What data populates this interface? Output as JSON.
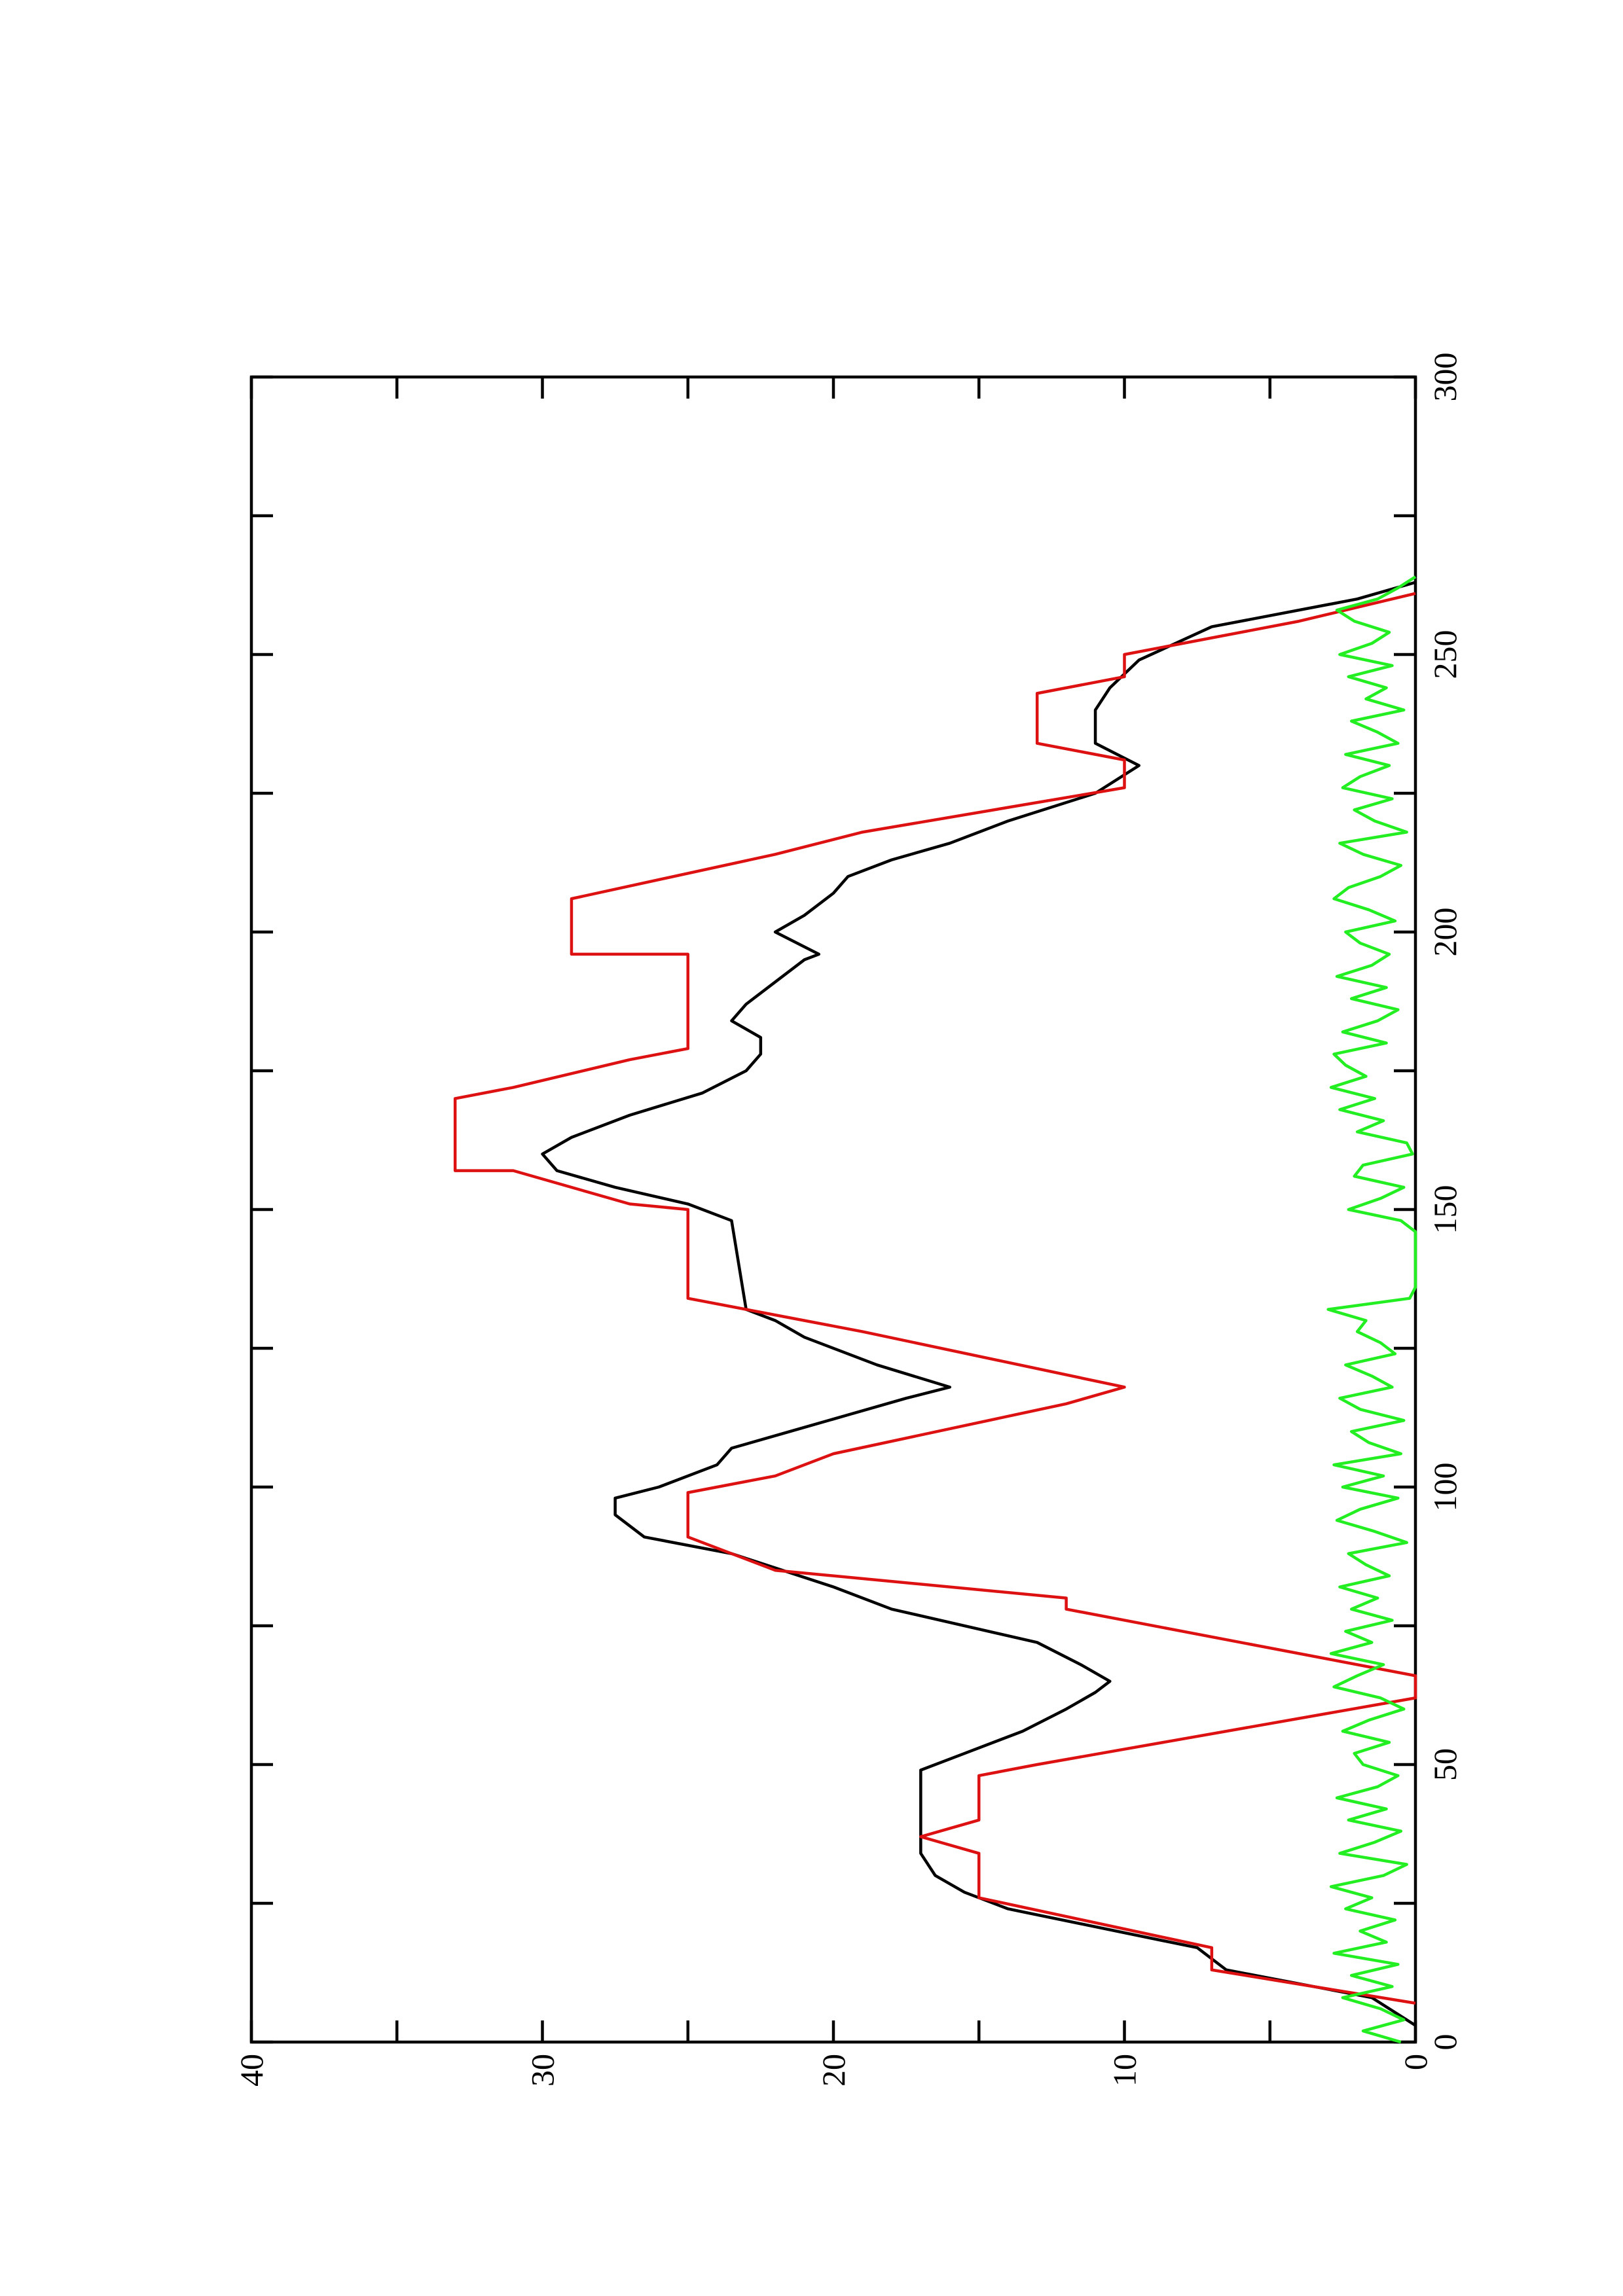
{
  "chart_data": {
    "type": "line",
    "xlim": [
      0,
      300
    ],
    "ylim": [
      0,
      40
    ],
    "xticks": [
      0,
      50,
      100,
      150,
      200,
      250,
      300
    ],
    "yticks": [
      0,
      10,
      20,
      30,
      40
    ],
    "xminor_ticks": [
      25,
      75,
      125,
      175,
      225,
      275
    ],
    "yminor_ticks": [
      5,
      15,
      25,
      35
    ],
    "series": [
      {
        "color": "#000000",
        "x": [
          3,
          8,
          13,
          17,
          24,
          27,
          30,
          34,
          37,
          40,
          45,
          49,
          52,
          56,
          60,
          63,
          65,
          68,
          72,
          78,
          82,
          88,
          91,
          95,
          98,
          100,
          104,
          107,
          110,
          113,
          116,
          118,
          122,
          127,
          130,
          132,
          148,
          151,
          154,
          157,
          160,
          163,
          167,
          171,
          175,
          178,
          181,
          184,
          187,
          191,
          195,
          196,
          200,
          203,
          207,
          210,
          213,
          216,
          220,
          225,
          230,
          234,
          240,
          244,
          249,
          255,
          260,
          263
        ],
        "values": [
          0,
          1.5,
          6.5,
          7.5,
          14,
          15.5,
          16.5,
          17,
          17,
          17,
          17,
          17,
          15.5,
          13.5,
          12,
          11,
          10.5,
          11.5,
          13,
          18,
          20,
          23.5,
          26.5,
          27.5,
          27.5,
          26,
          24,
          23.5,
          21.5,
          19.5,
          17.5,
          16,
          18.5,
          21,
          22,
          23,
          23.5,
          25,
          27.5,
          29.5,
          30,
          29,
          27,
          24.5,
          23,
          22.5,
          22.5,
          23.5,
          23,
          22,
          21,
          20.5,
          22,
          21,
          20,
          19.5,
          18,
          16,
          14,
          11,
          9.5,
          11,
          11,
          10.5,
          9.5,
          7,
          2,
          0
        ]
      },
      {
        "color": "#dd1111",
        "x": [
          7,
          13,
          17,
          26,
          34,
          37,
          40,
          48,
          50,
          62,
          66,
          78,
          80,
          85,
          91,
          94,
          99,
          102,
          106,
          115,
          118,
          128,
          134,
          150,
          151,
          157,
          157,
          170,
          172,
          177,
          179,
          196,
          196,
          206,
          214,
          218,
          226,
          231,
          234,
          243,
          246,
          250,
          256,
          261
        ],
        "values": [
          0,
          7,
          7,
          15,
          15,
          17,
          15,
          15,
          13,
          0,
          0,
          12,
          12,
          22,
          25,
          25,
          25,
          22,
          20,
          12,
          10,
          19,
          25,
          25,
          27,
          31,
          33,
          33,
          31,
          27,
          25,
          25,
          29,
          29,
          22,
          19,
          10,
          10,
          13,
          13,
          10,
          10,
          4,
          0
        ]
      },
      {
        "color": "#22ee22",
        "x": [
          0,
          2,
          4,
          6,
          8,
          10,
          12,
          14,
          16,
          18,
          20,
          22,
          24,
          26,
          28,
          30,
          32,
          34,
          36,
          38,
          40,
          42,
          44,
          46,
          48,
          50,
          52,
          54,
          56,
          58,
          60,
          62,
          64,
          66,
          68,
          70,
          72,
          74,
          76,
          78,
          80,
          82,
          84,
          86,
          88,
          90,
          92,
          94,
          96,
          98,
          100,
          102,
          104,
          106,
          108,
          110,
          112,
          114,
          116,
          118,
          120,
          122,
          124,
          126,
          128,
          130,
          132,
          134,
          136,
          138,
          140,
          142,
          144,
          146,
          148,
          150,
          152,
          154,
          156,
          158,
          160,
          162,
          164,
          166,
          168,
          170,
          172,
          174,
          176,
          178,
          180,
          182,
          184,
          186,
          188,
          190,
          192,
          194,
          196,
          198,
          200,
          202,
          204,
          206,
          208,
          210,
          212,
          214,
          216,
          218,
          220,
          222,
          224,
          226,
          228,
          230,
          232,
          234,
          236,
          238,
          240,
          242,
          244,
          246,
          248,
          250,
          252,
          254,
          256,
          258,
          260,
          262,
          264
        ],
        "values": [
          0.5,
          1.8,
          0.4,
          1.2,
          2.5,
          0.8,
          2.2,
          0.6,
          2.8,
          1.0,
          1.9,
          0.7,
          2.4,
          1.5,
          2.9,
          1.1,
          0.3,
          2.6,
          1.4,
          0.5,
          2.3,
          1.0,
          2.7,
          1.3,
          0.6,
          1.8,
          2.1,
          0.9,
          2.5,
          1.6,
          0.4,
          1.2,
          2.8,
          2.0,
          1.1,
          2.9,
          1.5,
          2.4,
          0.8,
          2.2,
          1.3,
          2.6,
          0.9,
          1.7,
          2.3,
          0.3,
          1.4,
          2.7,
          1.9,
          0.6,
          2.5,
          1.1,
          2.8,
          0.5,
          1.6,
          2.2,
          0.4,
          1.9,
          2.6,
          0.8,
          1.5,
          2.4,
          0.7,
          1.2,
          2.0,
          1.7,
          3.0,
          0.2,
          0,
          0,
          0,
          0,
          0,
          0,
          0.5,
          2.3,
          1.2,
          0.4,
          2.1,
          1.8,
          0.1,
          0.3,
          2.0,
          1.1,
          2.6,
          1.4,
          2.9,
          1.7,
          2.4,
          2.8,
          1.0,
          2.5,
          1.3,
          0.6,
          2.2,
          1.0,
          2.7,
          1.5,
          0.9,
          1.9,
          2.4,
          0.7,
          1.6,
          2.8,
          2.3,
          1.2,
          0.5,
          1.8,
          2.6,
          0.3,
          1.4,
          2.1,
          0.8,
          2.5,
          1.9,
          0.9,
          2.4,
          0.6,
          1.3,
          2.2,
          0.4,
          1.7,
          1.0,
          2.3,
          0.8,
          2.6,
          1.5,
          0.9,
          2.1,
          2.7,
          1.3,
          0.6,
          0
        ]
      }
    ]
  }
}
